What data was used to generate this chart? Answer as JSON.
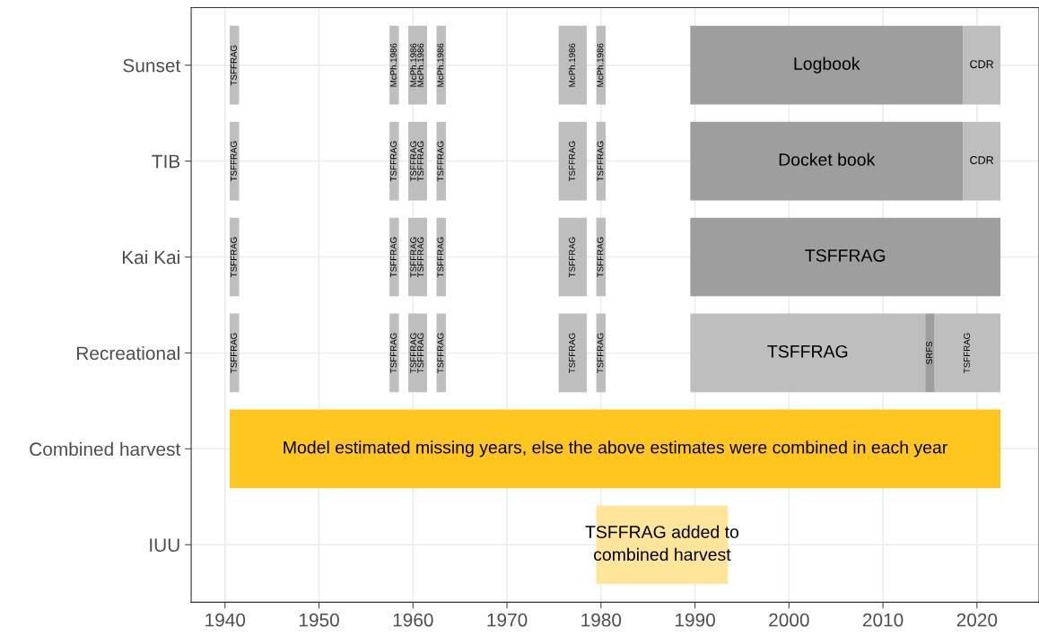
{
  "chart_data": {
    "type": "bar",
    "orientation": "horizontal",
    "categories": [
      "Sunset",
      "TIB",
      "Kai Kai",
      "Recreational",
      "Combined harvest",
      "IUU"
    ],
    "series": [
      {
        "color": "#bebebe",
        "base": [
          1940.5,
          1940.5,
          1940.5,
          1940.5,
          null,
          null
        ],
        "values": [
          1,
          1,
          1,
          1,
          null,
          null
        ],
        "value_labels": [
          "TSFFRAG",
          "TSFFRAG",
          "TSFFRAG",
          "TSFFRAG",
          null,
          null
        ]
      },
      {
        "color": "#bebebe",
        "base": [
          1957.5,
          1957.5,
          1957.5,
          1957.5,
          null,
          null
        ],
        "values": [
          1,
          1,
          1,
          1,
          null,
          null
        ],
        "value_labels": [
          "McPh.1986",
          "TSFFRAG",
          "TSFFRAG",
          "TSFFRAG",
          null,
          null
        ]
      },
      {
        "color": "#bebebe",
        "base": [
          1959.5,
          1959.5,
          1959.5,
          1959.5,
          null,
          null
        ],
        "values": [
          2,
          2,
          2,
          2,
          null,
          null
        ],
        "value_labels": [
          "McPh.1986\nMcPh.1986",
          "TSFFRAG\nTSFFRAG",
          "TSFFRAG\nTSFFRAG",
          "TSFFRAG\nTSFFRAG",
          null,
          null
        ]
      },
      {
        "color": "#bebebe",
        "base": [
          1962.5,
          1962.5,
          1962.5,
          1962.5,
          null,
          null
        ],
        "values": [
          1,
          1,
          1,
          1,
          null,
          null
        ],
        "value_labels": [
          "McPh.1986",
          "TSFFRAG",
          "TSFFRAG",
          "TSFFRAG",
          null,
          null
        ]
      },
      {
        "color": "#bebebe",
        "base": [
          1975.5,
          1975.5,
          1975.5,
          1975.5,
          null,
          null
        ],
        "values": [
          3,
          3,
          3,
          3,
          null,
          null
        ],
        "value_labels": [
          "McPh.1986",
          "TSFFRAG",
          "TSFFRAG",
          "TSFFRAG",
          null,
          null
        ]
      },
      {
        "color": "#bebebe",
        "base": [
          1979.5,
          1979.5,
          1979.5,
          1979.5,
          null,
          null
        ],
        "values": [
          1,
          1,
          1,
          1,
          null,
          null
        ],
        "value_labels": [
          "McPh.1986",
          "TSFFRAG",
          "TSFFRAG",
          "TSFFRAG",
          null,
          null
        ]
      },
      {
        "colors": [
          "#9e9e9e",
          "#9e9e9e",
          "#9e9e9e",
          "#bebebe",
          null,
          null
        ],
        "base": [
          1989.5,
          1989.5,
          1989.5,
          1989.5,
          null,
          null
        ],
        "values": [
          29,
          29,
          33,
          25,
          null,
          null
        ],
        "value_labels": [
          "Logbook",
          "Docket book",
          "TSFFRAG",
          "TSFFRAG",
          null,
          null
        ]
      },
      {
        "colors": [
          "#bebebe",
          "#bebebe",
          null,
          "#9e9e9e",
          null,
          null
        ],
        "base": [
          2018.5,
          2018.5,
          null,
          2014.5,
          null,
          null
        ],
        "values": [
          4,
          4,
          null,
          1,
          null,
          null
        ],
        "value_labels": [
          "CDR",
          "CDR",
          null,
          "SRFS",
          null,
          null
        ]
      },
      {
        "color": "#bebebe",
        "base": [
          null,
          null,
          null,
          2015.5,
          null,
          null
        ],
        "values": [
          null,
          null,
          null,
          7,
          null,
          null
        ],
        "value_labels": [
          null,
          null,
          null,
          "TSFFRAG",
          null,
          null
        ]
      },
      {
        "color": "#ffc620",
        "base": [
          null,
          null,
          null,
          null,
          1940.5,
          null
        ],
        "values": [
          null,
          null,
          null,
          null,
          82,
          null
        ],
        "value_labels": [
          null,
          null,
          null,
          null,
          "Model estimated missing years, else the above estimates were combined in each year",
          null
        ]
      },
      {
        "color": "#ffe599",
        "base": [
          null,
          null,
          null,
          null,
          null,
          1979.5
        ],
        "values": [
          null,
          null,
          null,
          null,
          null,
          14
        ],
        "value_labels": [
          null,
          null,
          null,
          null,
          null,
          "TSFFRAG added to\ncombined harvest"
        ]
      }
    ],
    "xlim": [
      1936.4,
      2026.6
    ],
    "xticks": [
      1940,
      1950,
      1960,
      1970,
      1980,
      1990,
      2000,
      2010,
      2020
    ],
    "grid": true
  }
}
